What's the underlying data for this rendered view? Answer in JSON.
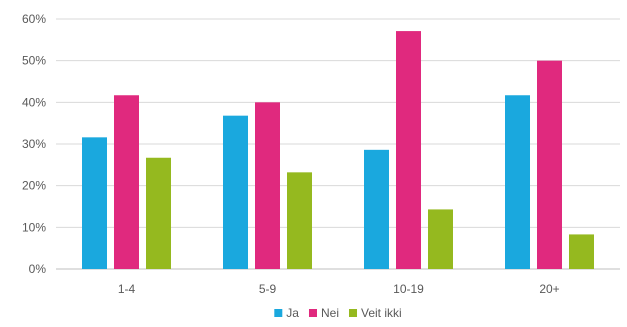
{
  "chart_data": {
    "type": "bar",
    "title": "",
    "xlabel": "",
    "ylabel": "",
    "categories": [
      "1-4",
      "5-9",
      "10-19",
      "20+"
    ],
    "series": [
      {
        "name": "Ja",
        "color": "#1aa8de",
        "values": [
          31.6,
          36.8,
          28.6,
          41.7
        ]
      },
      {
        "name": "Nei",
        "color": "#e0297e",
        "values": [
          41.7,
          40.0,
          57.1,
          50.0
        ]
      },
      {
        "name": "Veit ikki",
        "color": "#95b91f",
        "values": [
          26.7,
          23.2,
          14.3,
          8.3
        ]
      }
    ],
    "ylim": [
      0,
      60
    ],
    "yticks": [
      0,
      10,
      20,
      30,
      40,
      50,
      60
    ],
    "ytick_labels": [
      "0%",
      "10%",
      "20%",
      "30%",
      "40%",
      "50%",
      "60%"
    ],
    "grid": true,
    "legend_position": "bottom"
  }
}
